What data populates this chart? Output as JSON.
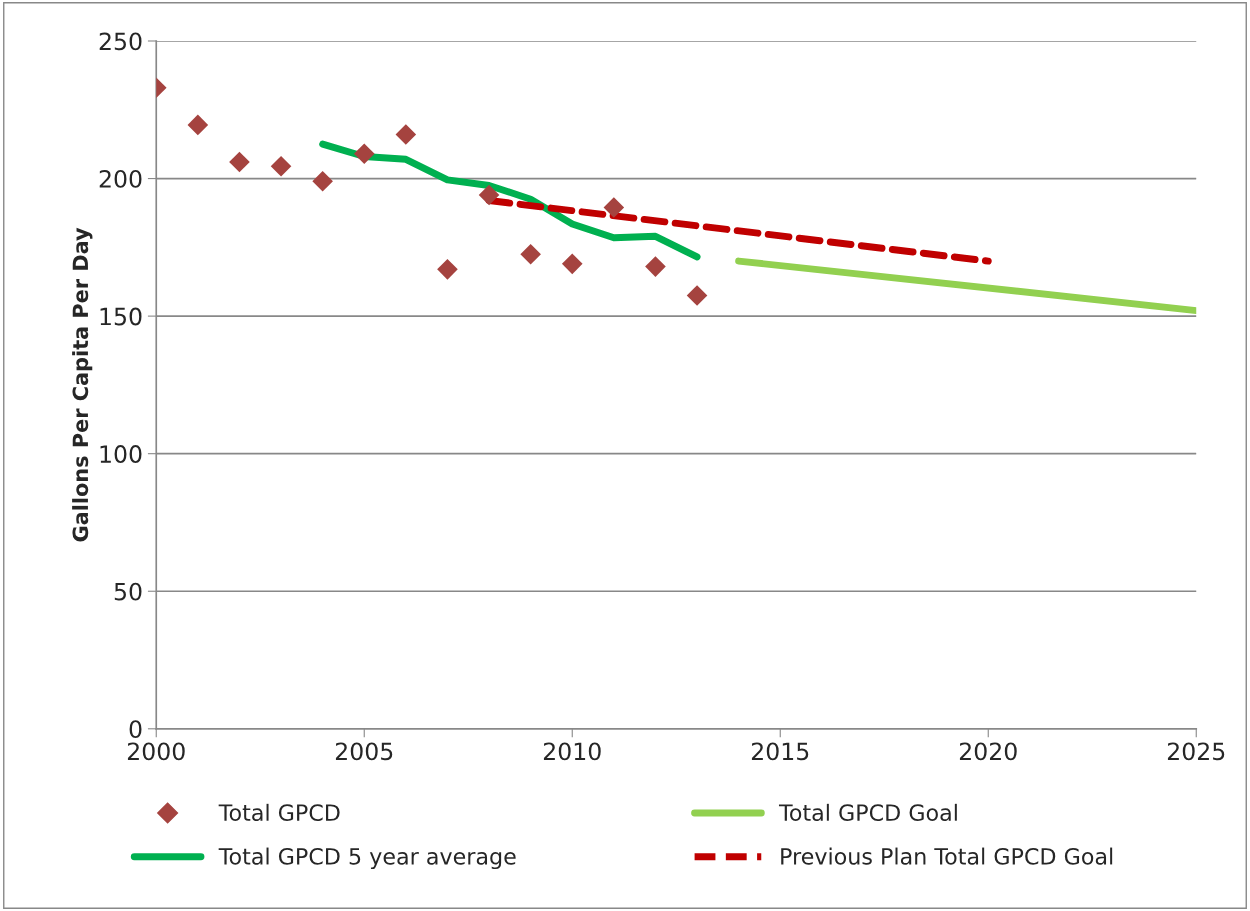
{
  "chart_data": {
    "type": "line",
    "ylabel": "Gallons Per Capita Per Day",
    "xlim": [
      2000,
      2025
    ],
    "xticks": [
      2000,
      2005,
      2010,
      2015,
      2020,
      2025
    ],
    "ylim": [
      0,
      250
    ],
    "yticks": [
      0,
      50,
      100,
      150,
      200,
      250
    ],
    "grid": "y",
    "legend": "bottom",
    "series": [
      {
        "name": "Total GPCD",
        "type": "scatter",
        "marker": "diamond",
        "color": "#a5433f",
        "x": [
          2000,
          2001,
          2002,
          2003,
          2004,
          2005,
          2006,
          2007,
          2008,
          2009,
          2010,
          2011,
          2012,
          2013
        ],
        "values": [
          233,
          219.5,
          206,
          204.5,
          199,
          209,
          216,
          167,
          194,
          172.5,
          169,
          189.5,
          168,
          157.5
        ]
      },
      {
        "name": "Total GPCD 5 year average",
        "color": "#00b050",
        "line_style": "solid",
        "x": [
          2004,
          2005,
          2006,
          2007,
          2008,
          2009,
          2010,
          2011,
          2012,
          2013
        ],
        "values": [
          212.5,
          208,
          207,
          199.5,
          197.5,
          192.5,
          183.5,
          178.5,
          179,
          171.5
        ]
      },
      {
        "name": "Total GPCD Goal",
        "color": "#92d050",
        "line_style": "solid",
        "x": [
          2014,
          2025
        ],
        "values": [
          170,
          152
        ]
      },
      {
        "name": "Previous Plan Total GPCD Goal",
        "color": "#c00000",
        "line_style": "dashed",
        "x": [
          2008,
          2020
        ],
        "values": [
          192,
          170
        ]
      }
    ]
  }
}
